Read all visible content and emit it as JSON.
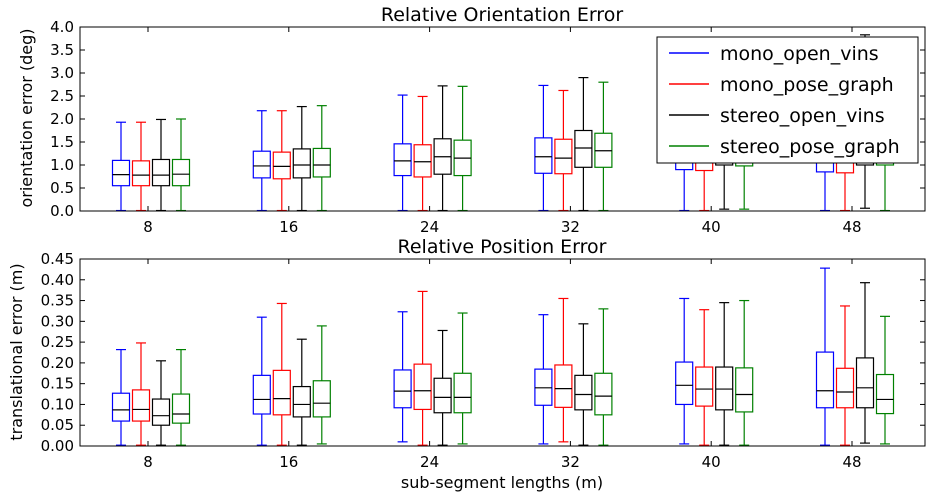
{
  "colors": {
    "mono_open_vins": "#0000ff",
    "mono_pose_graph": "#ff0000",
    "stereo_open_vins": "#000000",
    "stereo_pose_graph": "#008000"
  },
  "series_names": [
    "mono_open_vins",
    "mono_pose_graph",
    "stereo_open_vins",
    "stereo_pose_graph"
  ],
  "chart_data": [
    {
      "type": "box",
      "title": "Relative Orientation Error",
      "xlabel": "",
      "ylabel": "orientation error (deg)",
      "categories": [
        "8",
        "16",
        "24",
        "32",
        "40",
        "48"
      ],
      "ylim": [
        0,
        4.0
      ],
      "yticks": [
        "0.0",
        "0.5",
        "1.0",
        "1.5",
        "2.0",
        "2.5",
        "3.0",
        "3.5",
        "4.0"
      ],
      "grid": false,
      "legend": "top-right",
      "series": [
        {
          "name": "mono_open_vins",
          "stats": [
            {
              "min": 0.01,
              "q1": 0.55,
              "med": 0.79,
              "q3": 1.1,
              "max": 1.93
            },
            {
              "min": 0.01,
              "q1": 0.72,
              "med": 0.98,
              "q3": 1.3,
              "max": 2.18
            },
            {
              "min": 0.01,
              "q1": 0.77,
              "med": 1.09,
              "q3": 1.46,
              "max": 2.52
            },
            {
              "min": 0.01,
              "q1": 0.82,
              "med": 1.18,
              "q3": 1.59,
              "max": 2.73
            },
            {
              "min": 0.01,
              "q1": 0.9,
              "med": 1.25,
              "q3": 1.7,
              "max": 2.9
            },
            {
              "min": 0.01,
              "q1": 0.85,
              "med": 1.2,
              "q3": 1.65,
              "max": 2.95
            }
          ]
        },
        {
          "name": "mono_pose_graph",
          "stats": [
            {
              "min": 0.01,
              "q1": 0.55,
              "med": 0.78,
              "q3": 1.09,
              "max": 1.93
            },
            {
              "min": 0.01,
              "q1": 0.7,
              "med": 0.97,
              "q3": 1.28,
              "max": 2.18
            },
            {
              "min": 0.01,
              "q1": 0.74,
              "med": 1.07,
              "q3": 1.44,
              "max": 2.49
            },
            {
              "min": 0.01,
              "q1": 0.81,
              "med": 1.15,
              "q3": 1.56,
              "max": 2.62
            },
            {
              "min": 0.01,
              "q1": 0.88,
              "med": 1.22,
              "q3": 1.68,
              "max": 2.85
            },
            {
              "min": 0.01,
              "q1": 0.83,
              "med": 1.18,
              "q3": 1.62,
              "max": 2.9
            }
          ]
        },
        {
          "name": "stereo_open_vins",
          "stats": [
            {
              "min": 0.01,
              "q1": 0.55,
              "med": 0.78,
              "q3": 1.12,
              "max": 1.99
            },
            {
              "min": 0.01,
              "q1": 0.72,
              "med": 1.0,
              "q3": 1.35,
              "max": 2.27
            },
            {
              "min": 0.01,
              "q1": 0.8,
              "med": 1.18,
              "q3": 1.57,
              "max": 2.72
            },
            {
              "min": 0.01,
              "q1": 0.95,
              "med": 1.37,
              "q3": 1.75,
              "max": 2.9
            },
            {
              "min": 0.04,
              "q1": 1.0,
              "med": 1.45,
              "q3": 1.9,
              "max": 3.5
            },
            {
              "min": 0.06,
              "q1": 1.0,
              "med": 1.5,
              "q3": 2.0,
              "max": 3.83
            }
          ]
        },
        {
          "name": "stereo_pose_graph",
          "stats": [
            {
              "min": 0.01,
              "q1": 0.55,
              "med": 0.8,
              "q3": 1.12,
              "max": 2.0
            },
            {
              "min": 0.01,
              "q1": 0.74,
              "med": 1.0,
              "q3": 1.36,
              "max": 2.29
            },
            {
              "min": 0.01,
              "q1": 0.77,
              "med": 1.15,
              "q3": 1.54,
              "max": 2.71
            },
            {
              "min": 0.01,
              "q1": 0.95,
              "med": 1.31,
              "q3": 1.69,
              "max": 2.8
            },
            {
              "min": 0.04,
              "q1": 0.98,
              "med": 1.4,
              "q3": 1.85,
              "max": 3.3
            },
            {
              "min": 0.01,
              "q1": 1.0,
              "med": 1.45,
              "q3": 1.95,
              "max": 3.4
            }
          ]
        }
      ]
    },
    {
      "type": "box",
      "title": "Relative Position Error",
      "xlabel": "sub-segment lengths (m)",
      "ylabel": "translational error (m)",
      "categories": [
        "8",
        "16",
        "24",
        "32",
        "40",
        "48"
      ],
      "ylim": [
        0,
        0.45
      ],
      "yticks": [
        "0.00",
        "0.05",
        "0.10",
        "0.15",
        "0.20",
        "0.25",
        "0.30",
        "0.35",
        "0.40",
        "0.45"
      ],
      "grid": false,
      "series": [
        {
          "name": "mono_open_vins",
          "stats": [
            {
              "min": 0.002,
              "q1": 0.06,
              "med": 0.087,
              "q3": 0.127,
              "max": 0.232
            },
            {
              "min": 0.002,
              "q1": 0.077,
              "med": 0.112,
              "q3": 0.17,
              "max": 0.31
            },
            {
              "min": 0.01,
              "q1": 0.092,
              "med": 0.132,
              "q3": 0.183,
              "max": 0.323
            },
            {
              "min": 0.005,
              "q1": 0.098,
              "med": 0.14,
              "q3": 0.185,
              "max": 0.316
            },
            {
              "min": 0.005,
              "q1": 0.1,
              "med": 0.146,
              "q3": 0.202,
              "max": 0.355
            },
            {
              "min": 0.002,
              "q1": 0.092,
              "med": 0.133,
              "q3": 0.226,
              "max": 0.428
            }
          ]
        },
        {
          "name": "mono_pose_graph",
          "stats": [
            {
              "min": 0.002,
              "q1": 0.06,
              "med": 0.088,
              "q3": 0.135,
              "max": 0.248
            },
            {
              "min": 0.002,
              "q1": 0.075,
              "med": 0.114,
              "q3": 0.182,
              "max": 0.343
            },
            {
              "min": 0.002,
              "q1": 0.088,
              "med": 0.133,
              "q3": 0.197,
              "max": 0.372
            },
            {
              "min": 0.01,
              "q1": 0.093,
              "med": 0.138,
              "q3": 0.195,
              "max": 0.355
            },
            {
              "min": 0.002,
              "q1": 0.096,
              "med": 0.137,
              "q3": 0.19,
              "max": 0.328
            },
            {
              "min": 0.002,
              "q1": 0.092,
              "med": 0.13,
              "q3": 0.187,
              "max": 0.337
            }
          ]
        },
        {
          "name": "stereo_open_vins",
          "stats": [
            {
              "min": 0.002,
              "q1": 0.05,
              "med": 0.073,
              "q3": 0.113,
              "max": 0.205
            },
            {
              "min": 0.002,
              "q1": 0.07,
              "med": 0.1,
              "q3": 0.143,
              "max": 0.257
            },
            {
              "min": 0.002,
              "q1": 0.08,
              "med": 0.117,
              "q3": 0.163,
              "max": 0.278
            },
            {
              "min": 0.002,
              "q1": 0.087,
              "med": 0.124,
              "q3": 0.17,
              "max": 0.294
            },
            {
              "min": 0.002,
              "q1": 0.087,
              "med": 0.137,
              "q3": 0.19,
              "max": 0.345
            },
            {
              "min": 0.007,
              "q1": 0.092,
              "med": 0.14,
              "q3": 0.212,
              "max": 0.393
            }
          ]
        },
        {
          "name": "stereo_pose_graph",
          "stats": [
            {
              "min": 0.002,
              "q1": 0.055,
              "med": 0.077,
              "q3": 0.125,
              "max": 0.232
            },
            {
              "min": 0.005,
              "q1": 0.07,
              "med": 0.103,
              "q3": 0.157,
              "max": 0.289
            },
            {
              "min": 0.005,
              "q1": 0.08,
              "med": 0.117,
              "q3": 0.175,
              "max": 0.32
            },
            {
              "min": 0.002,
              "q1": 0.075,
              "med": 0.12,
              "q3": 0.175,
              "max": 0.33
            },
            {
              "min": 0.002,
              "q1": 0.082,
              "med": 0.124,
              "q3": 0.188,
              "max": 0.35
            },
            {
              "min": 0.005,
              "q1": 0.078,
              "med": 0.112,
              "q3": 0.172,
              "max": 0.312
            }
          ]
        }
      ]
    }
  ]
}
